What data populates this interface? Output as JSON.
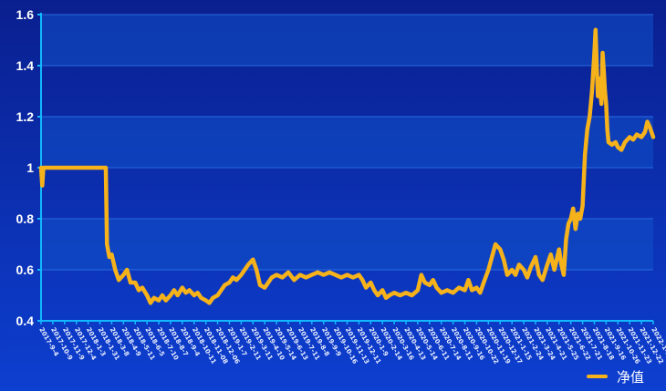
{
  "colors": {
    "background_top": "#0a1f8f",
    "background_bottom": "#0d3fd0",
    "band": "#1050c8",
    "axis": "#12b8ff",
    "series": "#f6b21a",
    "text": "#ffffff"
  },
  "chart_data": {
    "type": "line",
    "title": "",
    "xlabel": "",
    "ylabel": "",
    "ylim": [
      0.4,
      1.6
    ],
    "yticks": [
      0.4,
      0.6,
      0.8,
      1,
      1.2,
      1.4,
      1.6
    ],
    "ytick_labels": [
      "0.4",
      "0.6",
      "0.8",
      "1",
      "1.2",
      "1.4",
      "1.6"
    ],
    "grid": "horizontal bands",
    "legend_position": "bottom-right",
    "x_tick_labels": [
      "2017-9-4",
      "2017-10-9",
      "2017-11-9",
      "2017-12-4",
      "2018-1-3",
      "2018-1-31",
      "2018-3-8",
      "2018-4-9",
      "2018-5-11",
      "2018-6-5",
      "2018-7-10",
      "2018-8-7",
      "2018-9-4",
      "2018-10-11",
      "2018-11-08",
      "2018-12-06",
      "2019-1-7",
      "2019-2-11",
      "2019-3-11",
      "2019-4-10",
      "2019-5-14",
      "2019-6-13",
      "2019-7-11",
      "2019-8-8",
      "2019-9-9",
      "2019-10-16",
      "2019-11-13",
      "2019-12-11",
      "2020-1-9",
      "2020-2-14",
      "2020-3-16",
      "2020-4-13",
      "2020-5-14",
      "2020-6-11",
      "2020-7-14",
      "2020-8-11",
      "2020-9-16",
      "2020-10-22",
      "2020-11-19",
      "2020-12-17",
      "2021-1-15",
      "2021-2-24",
      "2021-3-24",
      "2021-4-21",
      "2021-5-25",
      "2021-6-22",
      "2021-7-21",
      "2021-8-18",
      "2021-9-16",
      "2021-10-26",
      "2021-11-23",
      "2021-12-22",
      "2022-1-20"
    ],
    "series": [
      {
        "name": "净值",
        "x_start_index": 0,
        "x_end_index": 52,
        "points": [
          [
            0,
            1.0
          ],
          [
            0.1,
            0.93
          ],
          [
            0.2,
            1.0
          ],
          [
            1,
            1.0
          ],
          [
            2,
            1.0
          ],
          [
            3,
            1.0
          ],
          [
            4,
            1.0
          ],
          [
            5,
            1.0
          ],
          [
            5.5,
            1.0
          ],
          [
            5.6,
            0.7
          ],
          [
            5.8,
            0.65
          ],
          [
            6,
            0.66
          ],
          [
            6.3,
            0.6
          ],
          [
            6.6,
            0.56
          ],
          [
            7,
            0.58
          ],
          [
            7.3,
            0.6
          ],
          [
            7.6,
            0.55
          ],
          [
            8,
            0.55
          ],
          [
            8.3,
            0.52
          ],
          [
            8.6,
            0.53
          ],
          [
            9,
            0.5
          ],
          [
            9.3,
            0.47
          ],
          [
            9.6,
            0.49
          ],
          [
            10,
            0.48
          ],
          [
            10.3,
            0.5
          ],
          [
            10.6,
            0.48
          ],
          [
            11,
            0.5
          ],
          [
            11.3,
            0.52
          ],
          [
            11.6,
            0.5
          ],
          [
            12,
            0.53
          ],
          [
            12.3,
            0.51
          ],
          [
            12.6,
            0.52
          ],
          [
            13,
            0.5
          ],
          [
            13.3,
            0.51
          ],
          [
            13.6,
            0.49
          ],
          [
            14,
            0.48
          ],
          [
            14.3,
            0.47
          ],
          [
            14.6,
            0.49
          ],
          [
            15,
            0.5
          ],
          [
            15.3,
            0.52
          ],
          [
            15.6,
            0.54
          ],
          [
            16,
            0.55
          ],
          [
            16.3,
            0.57
          ],
          [
            16.6,
            0.56
          ],
          [
            17,
            0.58
          ],
          [
            17.3,
            0.6
          ],
          [
            17.6,
            0.62
          ],
          [
            18,
            0.64
          ],
          [
            18.3,
            0.6
          ],
          [
            18.6,
            0.54
          ],
          [
            19,
            0.53
          ],
          [
            19.3,
            0.55
          ],
          [
            19.6,
            0.57
          ],
          [
            20,
            0.58
          ],
          [
            20.5,
            0.57
          ],
          [
            21,
            0.59
          ],
          [
            21.5,
            0.56
          ],
          [
            22,
            0.58
          ],
          [
            22.5,
            0.57
          ],
          [
            23,
            0.58
          ],
          [
            23.5,
            0.59
          ],
          [
            24,
            0.58
          ],
          [
            24.5,
            0.59
          ],
          [
            25,
            0.58
          ],
          [
            25.5,
            0.57
          ],
          [
            26,
            0.58
          ],
          [
            26.5,
            0.57
          ],
          [
            27,
            0.58
          ],
          [
            27.3,
            0.56
          ],
          [
            27.6,
            0.53
          ],
          [
            28,
            0.55
          ],
          [
            28.3,
            0.52
          ],
          [
            28.6,
            0.5
          ],
          [
            29,
            0.52
          ],
          [
            29.3,
            0.49
          ],
          [
            29.6,
            0.5
          ],
          [
            30,
            0.51
          ],
          [
            30.5,
            0.5
          ],
          [
            31,
            0.51
          ],
          [
            31.5,
            0.5
          ],
          [
            32,
            0.52
          ],
          [
            32.3,
            0.58
          ],
          [
            32.6,
            0.55
          ],
          [
            33,
            0.54
          ],
          [
            33.3,
            0.56
          ],
          [
            33.6,
            0.53
          ],
          [
            34,
            0.51
          ],
          [
            34.5,
            0.52
          ],
          [
            35,
            0.51
          ],
          [
            35.5,
            0.53
          ],
          [
            36,
            0.52
          ],
          [
            36.3,
            0.56
          ],
          [
            36.6,
            0.52
          ],
          [
            37,
            0.53
          ],
          [
            37.3,
            0.51
          ],
          [
            37.6,
            0.55
          ],
          [
            38,
            0.6
          ],
          [
            38.3,
            0.65
          ],
          [
            38.6,
            0.7
          ],
          [
            39,
            0.68
          ],
          [
            39.3,
            0.64
          ],
          [
            39.6,
            0.58
          ],
          [
            40,
            0.6
          ],
          [
            40.3,
            0.58
          ],
          [
            40.6,
            0.62
          ],
          [
            41,
            0.6
          ],
          [
            41.3,
            0.57
          ],
          [
            41.6,
            0.61
          ],
          [
            42,
            0.65
          ],
          [
            42.3,
            0.58
          ],
          [
            42.6,
            0.56
          ],
          [
            43,
            0.62
          ],
          [
            43.3,
            0.66
          ],
          [
            43.6,
            0.6
          ],
          [
            44,
            0.68
          ],
          [
            44.2,
            0.62
          ],
          [
            44.4,
            0.58
          ],
          [
            44.6,
            0.72
          ],
          [
            44.8,
            0.78
          ],
          [
            45,
            0.8
          ],
          [
            45.2,
            0.84
          ],
          [
            45.4,
            0.76
          ],
          [
            45.6,
            0.82
          ],
          [
            45.8,
            0.8
          ],
          [
            46,
            0.85
          ],
          [
            46.2,
            1.05
          ],
          [
            46.4,
            1.15
          ],
          [
            46.6,
            1.2
          ],
          [
            46.8,
            1.3
          ],
          [
            47,
            1.45
          ],
          [
            47.1,
            1.54
          ],
          [
            47.2,
            1.4
          ],
          [
            47.3,
            1.28
          ],
          [
            47.4,
            1.35
          ],
          [
            47.5,
            1.3
          ],
          [
            47.6,
            1.25
          ],
          [
            47.7,
            1.45
          ],
          [
            47.8,
            1.38
          ],
          [
            47.9,
            1.3
          ],
          [
            48,
            1.25
          ],
          [
            48.1,
            1.15
          ],
          [
            48.2,
            1.1
          ],
          [
            48.5,
            1.09
          ],
          [
            48.8,
            1.1
          ],
          [
            49,
            1.08
          ],
          [
            49.3,
            1.07
          ],
          [
            49.6,
            1.1
          ],
          [
            50,
            1.12
          ],
          [
            50.3,
            1.11
          ],
          [
            50.6,
            1.13
          ],
          [
            51,
            1.12
          ],
          [
            51.3,
            1.14
          ],
          [
            51.5,
            1.18
          ],
          [
            51.7,
            1.16
          ],
          [
            52,
            1.12
          ]
        ]
      }
    ],
    "legend": [
      {
        "label": "净值",
        "color": "#f6b21a"
      }
    ]
  }
}
